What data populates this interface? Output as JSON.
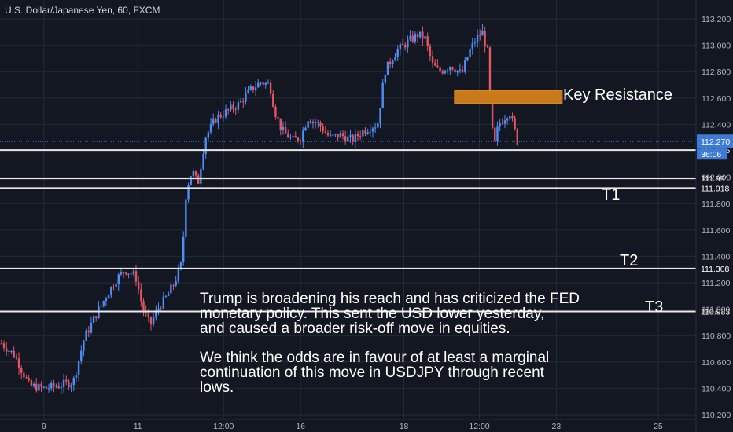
{
  "header": {
    "title": "U.S. Dollar/Japanese Yen, 60, FXCM"
  },
  "colors": {
    "background": "#131722",
    "grid": "#242a38",
    "bull": "#4f8ef7",
    "bear": "#e25563",
    "level_line": "#e8e8e8",
    "resistance_fill": "#c77b1a",
    "current_price": "#3d7bd6",
    "axis_text": "#b2b5be"
  },
  "annotations": {
    "key_resistance": "Key Resistance",
    "t1": "T1",
    "t2": "T2",
    "t3": "T3",
    "paragraph_1": "Trump is broadening his reach and has criticized the FED\nmonetary policy. This sent the USD lower yesterday,\nand caused a broader risk-off move in equities.",
    "paragraph_2": "We think the odds are in favour of at least a marginal\ncontinuation of this move in USDJPY through recent\nlows."
  },
  "price_badges": {
    "current_price": "112.270",
    "countdown": "36:06"
  },
  "chart_data": {
    "type": "candlestick",
    "title": "U.S. Dollar/Japanese Yen, 60, FXCM",
    "y_ticks": [
      "113.200",
      "113.000",
      "112.800",
      "112.600",
      "112.400",
      "112.000",
      "111.800",
      "111.600",
      "111.400",
      "111.200",
      "111.000",
      "110.800",
      "110.600",
      "110.400",
      "110.200"
    ],
    "x_ticks": [
      {
        "label": "9",
        "pos": 0.06
      },
      {
        "label": "11",
        "pos": 0.188
      },
      {
        "label": "12:00",
        "pos": 0.305
      },
      {
        "label": "16",
        "pos": 0.41
      },
      {
        "label": "18",
        "pos": 0.551
      },
      {
        "label": "12:00",
        "pos": 0.654
      },
      {
        "label": "23",
        "pos": 0.759
      },
      {
        "label": "25",
        "pos": 0.898
      }
    ],
    "ylim": [
      110.2,
      113.3
    ],
    "levels": [
      {
        "value": 112.205,
        "label": "112.205"
      },
      {
        "value": 111.991,
        "label": "111.991"
      },
      {
        "value": 111.918,
        "label": "111.918"
      },
      {
        "value": 111.308,
        "label": "111.308"
      },
      {
        "value": 110.983,
        "label": "110.983"
      }
    ],
    "resistance_zone": {
      "low": 112.59,
      "high": 112.65,
      "x_start": 0.62,
      "x_end": 0.767
    },
    "current_price": 112.27,
    "last_candle_x": 0.706,
    "close_path": [
      [
        0.0,
        110.75
      ],
      [
        0.02,
        110.65
      ],
      [
        0.04,
        110.42
      ],
      [
        0.06,
        110.4
      ],
      [
        0.08,
        110.42
      ],
      [
        0.1,
        110.45
      ],
      [
        0.115,
        110.78
      ],
      [
        0.13,
        110.95
      ],
      [
        0.145,
        111.1
      ],
      [
        0.158,
        111.22
      ],
      [
        0.17,
        111.3
      ],
      [
        0.185,
        111.25
      ],
      [
        0.195,
        111.0
      ],
      [
        0.205,
        110.88
      ],
      [
        0.215,
        111.0
      ],
      [
        0.228,
        111.1
      ],
      [
        0.238,
        111.2
      ],
      [
        0.248,
        111.35
      ],
      [
        0.254,
        111.9
      ],
      [
        0.262,
        112.05
      ],
      [
        0.27,
        111.95
      ],
      [
        0.28,
        112.3
      ],
      [
        0.295,
        112.45
      ],
      [
        0.31,
        112.5
      ],
      [
        0.325,
        112.55
      ],
      [
        0.34,
        112.65
      ],
      [
        0.355,
        112.72
      ],
      [
        0.368,
        112.7
      ],
      [
        0.375,
        112.5
      ],
      [
        0.385,
        112.35
      ],
      [
        0.4,
        112.28
      ],
      [
        0.41,
        112.3
      ],
      [
        0.42,
        112.45
      ],
      [
        0.435,
        112.4
      ],
      [
        0.45,
        112.3
      ],
      [
        0.465,
        112.32
      ],
      [
        0.48,
        112.28
      ],
      [
        0.495,
        112.35
      ],
      [
        0.505,
        112.38
      ],
      [
        0.515,
        112.4
      ],
      [
        0.525,
        112.8
      ],
      [
        0.54,
        112.95
      ],
      [
        0.555,
        113.02
      ],
      [
        0.57,
        113.08
      ],
      [
        0.58,
        113.05
      ],
      [
        0.59,
        112.85
      ],
      [
        0.6,
        112.8
      ],
      [
        0.615,
        112.85
      ],
      [
        0.63,
        112.78
      ],
      [
        0.64,
        112.95
      ],
      [
        0.65,
        113.05
      ],
      [
        0.658,
        113.1
      ],
      [
        0.665,
        112.95
      ],
      [
        0.67,
        112.4
      ],
      [
        0.675,
        112.25
      ],
      [
        0.68,
        112.4
      ],
      [
        0.688,
        112.45
      ],
      [
        0.695,
        112.5
      ],
      [
        0.7,
        112.4
      ],
      [
        0.706,
        112.27
      ]
    ]
  }
}
